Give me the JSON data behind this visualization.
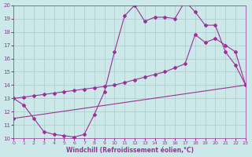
{
  "xlabel": "Windchill (Refroidissement éolien,°C)",
  "bg_color": "#cce8e8",
  "line_color": "#993399",
  "xmin": 0,
  "xmax": 23,
  "ymin": 10,
  "ymax": 20,
  "x_ticks": [
    0,
    1,
    2,
    3,
    4,
    5,
    6,
    7,
    8,
    9,
    10,
    11,
    12,
    13,
    14,
    15,
    16,
    17,
    18,
    19,
    20,
    21,
    22,
    23
  ],
  "y_ticks": [
    10,
    11,
    12,
    13,
    14,
    15,
    16,
    17,
    18,
    19,
    20
  ],
  "series1_x": [
    0,
    1,
    2,
    3,
    4,
    5,
    6,
    7,
    8,
    9,
    10,
    11,
    12,
    13,
    14,
    15,
    16,
    17,
    18,
    19,
    20,
    21,
    22,
    23
  ],
  "series1_y": [
    13.0,
    12.5,
    11.5,
    10.5,
    10.3,
    10.2,
    10.1,
    10.3,
    11.8,
    13.5,
    16.5,
    19.2,
    20.0,
    18.8,
    19.1,
    19.1,
    19.0,
    20.3,
    19.5,
    18.5,
    18.5,
    16.5,
    15.5,
    14.0
  ],
  "series2_x": [
    0,
    1,
    2,
    3,
    4,
    5,
    6,
    7,
    8,
    9,
    10,
    11,
    12,
    13,
    14,
    15,
    16,
    17,
    18,
    19,
    20,
    21,
    22,
    23
  ],
  "series2_y": [
    13.0,
    13.1,
    13.2,
    13.3,
    13.4,
    13.5,
    13.6,
    13.7,
    13.8,
    13.9,
    14.0,
    14.2,
    14.4,
    14.6,
    14.8,
    15.0,
    15.3,
    15.6,
    17.8,
    17.2,
    17.5,
    17.0,
    16.5,
    14.0
  ],
  "series3_x": [
    0,
    23
  ],
  "series3_y": [
    11.5,
    14.0
  ],
  "grid_color": "#aacccc",
  "marker": "D",
  "markersize": 2.0,
  "linewidth": 0.8
}
